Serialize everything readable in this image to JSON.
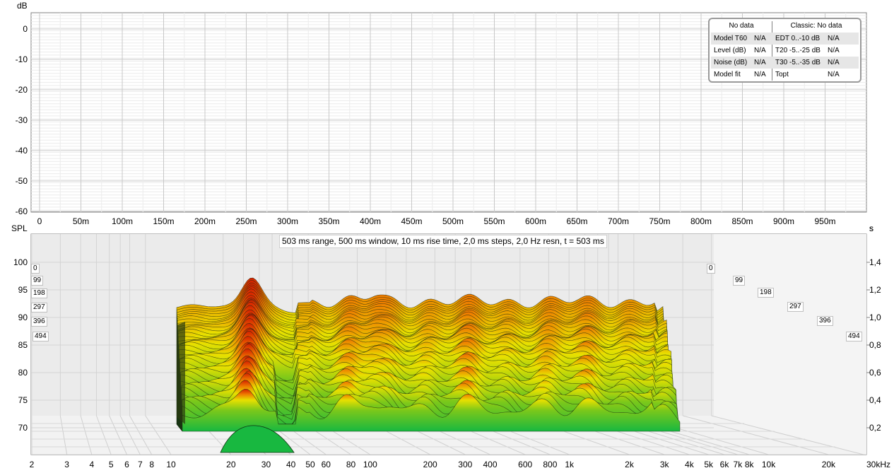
{
  "top_chart": {
    "y_unit": "dB",
    "y_ticks": [
      "0",
      "-10",
      "-20",
      "-30",
      "-40",
      "-50",
      "-60"
    ],
    "x_unit": "s",
    "x_ticks": [
      "0",
      "50m",
      "100m",
      "150m",
      "200m",
      "250m",
      "300m",
      "350m",
      "400m",
      "450m",
      "500m",
      "550m",
      "600m",
      "650m",
      "700m",
      "750m",
      "800m",
      "850m",
      "900m",
      "950m"
    ]
  },
  "t60_panel": {
    "left_header": "No data",
    "right_header": "Classic: No data",
    "rows": [
      {
        "label": "Model T60",
        "value": "N/A",
        "label2": "EDT  0..-10 dB",
        "value2": "N/A"
      },
      {
        "label": "Level (dB)",
        "value": "N/A",
        "label2": "T20 -5..-25 dB",
        "value2": "N/A"
      },
      {
        "label": "Noise (dB)",
        "value": "N/A",
        "label2": "T30 -5..-35 dB",
        "value2": "N/A"
      },
      {
        "label": "Model fit",
        "value": "N/A",
        "label2": "Topt",
        "value2": "N/A"
      }
    ]
  },
  "waterfall": {
    "caption": "503 ms range, 500 ms window, 10 ms rise time, 2,0 ms steps,  2,0 Hz resn, t = 503 ms",
    "y_unit": "SPL",
    "y_ticks": [
      "100",
      "95",
      "90",
      "85",
      "80",
      "75",
      "70"
    ],
    "right_ticks": [
      "1,4",
      "1,2",
      "1,0",
      "0,8",
      "0,6",
      "0,4",
      "0,2"
    ],
    "right_unit": "s",
    "time_labels": [
      "0",
      "99",
      "198",
      "297",
      "396",
      "494"
    ],
    "x_ticks": [
      "2",
      "3",
      "4",
      "5",
      "6",
      "7",
      "8",
      "10",
      "20",
      "30",
      "40",
      "50",
      "60",
      "80",
      "100",
      "200",
      "300",
      "400",
      "600",
      "800",
      "1k",
      "2k",
      "3k",
      "4k",
      "5k",
      "6k",
      "7k",
      "8k",
      "10k",
      "20k",
      "30kHz"
    ],
    "colors": {
      "top": "#d62000",
      "mid": "#e6e600",
      "low": "#1db83a",
      "wall": "#ebebeb"
    }
  }
}
